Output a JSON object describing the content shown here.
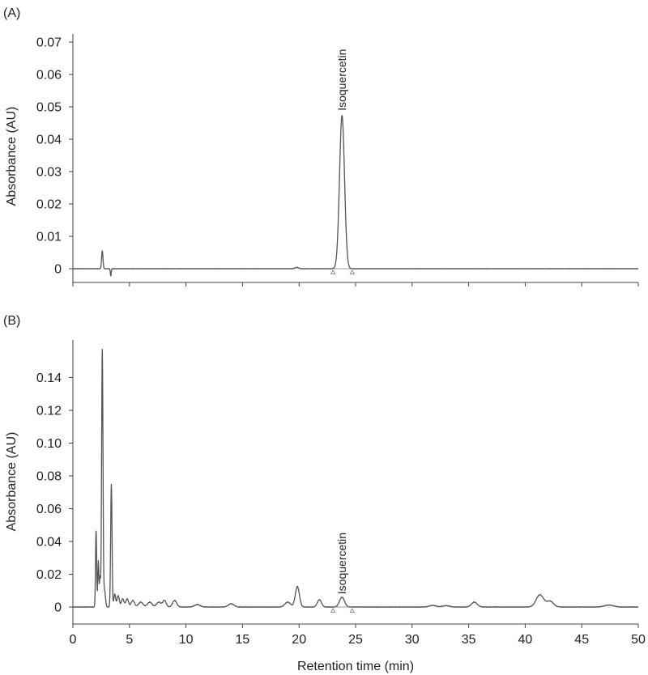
{
  "chart_data": [
    {
      "panel_label": "(A)",
      "type": "line",
      "xlabel": "",
      "ylabel": "Absorbance (AU)",
      "xlim": [
        0,
        50
      ],
      "ylim": [
        0,
        0.07
      ],
      "x_ticks": [
        0,
        5,
        10,
        15,
        20,
        25,
        30,
        35,
        40,
        45,
        50
      ],
      "x_tick_labels_shown": false,
      "y_ticks": [
        0,
        0.01,
        0.02,
        0.03,
        0.04,
        0.05,
        0.06,
        0.07
      ],
      "y_tick_labels": [
        "0",
        "0.01",
        "0.02",
        "0.03",
        "0.04",
        "0.05",
        "0.06",
        "0.07"
      ],
      "line_color": "#555555",
      "grid": false,
      "baseline": 0.0,
      "noise_amplitude": 8e-05,
      "peaks": [
        {
          "t": 2.6,
          "height": 0.0055,
          "width": 0.06
        },
        {
          "t": 3.35,
          "height": -0.0022,
          "width": 0.04
        },
        {
          "t": 19.8,
          "height": 0.0004,
          "width": 0.15
        },
        {
          "t": 23.8,
          "height": 0.0473,
          "width": 0.22
        }
      ],
      "annotations": [
        {
          "text": "Isoquercetin",
          "x": 23.8,
          "y": 0.0488
        }
      ],
      "integration_markers": [
        23.0,
        24.7
      ]
    },
    {
      "panel_label": "(B)",
      "type": "line",
      "xlabel": "Retention time (min)",
      "ylabel": "Absorbance (AU)",
      "xlim": [
        0,
        50
      ],
      "ylim": [
        0,
        0.16
      ],
      "x_ticks": [
        0,
        5,
        10,
        15,
        20,
        25,
        30,
        35,
        40,
        45,
        50
      ],
      "x_tick_labels": [
        "0",
        "5",
        "10",
        "15",
        "20",
        "25",
        "30",
        "35",
        "40",
        "45",
        "50"
      ],
      "y_ticks": [
        0,
        0.02,
        0.04,
        0.06,
        0.08,
        0.1,
        0.12,
        0.14
      ],
      "y_tick_labels": [
        "0",
        "0.02",
        "0.04",
        "0.06",
        "0.08",
        "0.10",
        "0.12",
        "0.14"
      ],
      "line_color": "#555555",
      "grid": false,
      "baseline": 0.0,
      "noise_amplitude": 0.0002,
      "peaks": [
        {
          "t": 2.05,
          "height": 0.047,
          "width": 0.05
        },
        {
          "t": 2.25,
          "height": 0.028,
          "width": 0.05
        },
        {
          "t": 2.4,
          "height": 0.018,
          "width": 0.05
        },
        {
          "t": 2.6,
          "height": 0.157,
          "width": 0.06
        },
        {
          "t": 2.8,
          "height": 0.01,
          "width": 0.08
        },
        {
          "t": 3.4,
          "height": 0.075,
          "width": 0.06
        },
        {
          "t": 3.7,
          "height": 0.008,
          "width": 0.08
        },
        {
          "t": 4.0,
          "height": 0.007,
          "width": 0.1
        },
        {
          "t": 4.4,
          "height": 0.005,
          "width": 0.12
        },
        {
          "t": 4.8,
          "height": 0.005,
          "width": 0.12
        },
        {
          "t": 5.3,
          "height": 0.004,
          "width": 0.15
        },
        {
          "t": 6.0,
          "height": 0.003,
          "width": 0.2
        },
        {
          "t": 6.8,
          "height": 0.003,
          "width": 0.2
        },
        {
          "t": 7.6,
          "height": 0.003,
          "width": 0.2
        },
        {
          "t": 8.1,
          "height": 0.004,
          "width": 0.15
        },
        {
          "t": 9.0,
          "height": 0.004,
          "width": 0.18
        },
        {
          "t": 11.0,
          "height": 0.0015,
          "width": 0.25
        },
        {
          "t": 14.0,
          "height": 0.002,
          "width": 0.25
        },
        {
          "t": 19.0,
          "height": 0.003,
          "width": 0.25
        },
        {
          "t": 19.85,
          "height": 0.0125,
          "width": 0.18
        },
        {
          "t": 21.8,
          "height": 0.0045,
          "width": 0.18
        },
        {
          "t": 23.8,
          "height": 0.006,
          "width": 0.22
        },
        {
          "t": 31.8,
          "height": 0.001,
          "width": 0.3
        },
        {
          "t": 33.0,
          "height": 0.0008,
          "width": 0.3
        },
        {
          "t": 35.5,
          "height": 0.003,
          "width": 0.25
        },
        {
          "t": 41.3,
          "height": 0.0075,
          "width": 0.33
        },
        {
          "t": 42.2,
          "height": 0.0035,
          "width": 0.3
        },
        {
          "t": 47.4,
          "height": 0.0012,
          "width": 0.4
        }
      ],
      "annotations": [
        {
          "text": "Isoquercetin",
          "x": 23.8,
          "y": 0.0078
        }
      ],
      "integration_markers": [
        23.0,
        24.7
      ]
    }
  ]
}
